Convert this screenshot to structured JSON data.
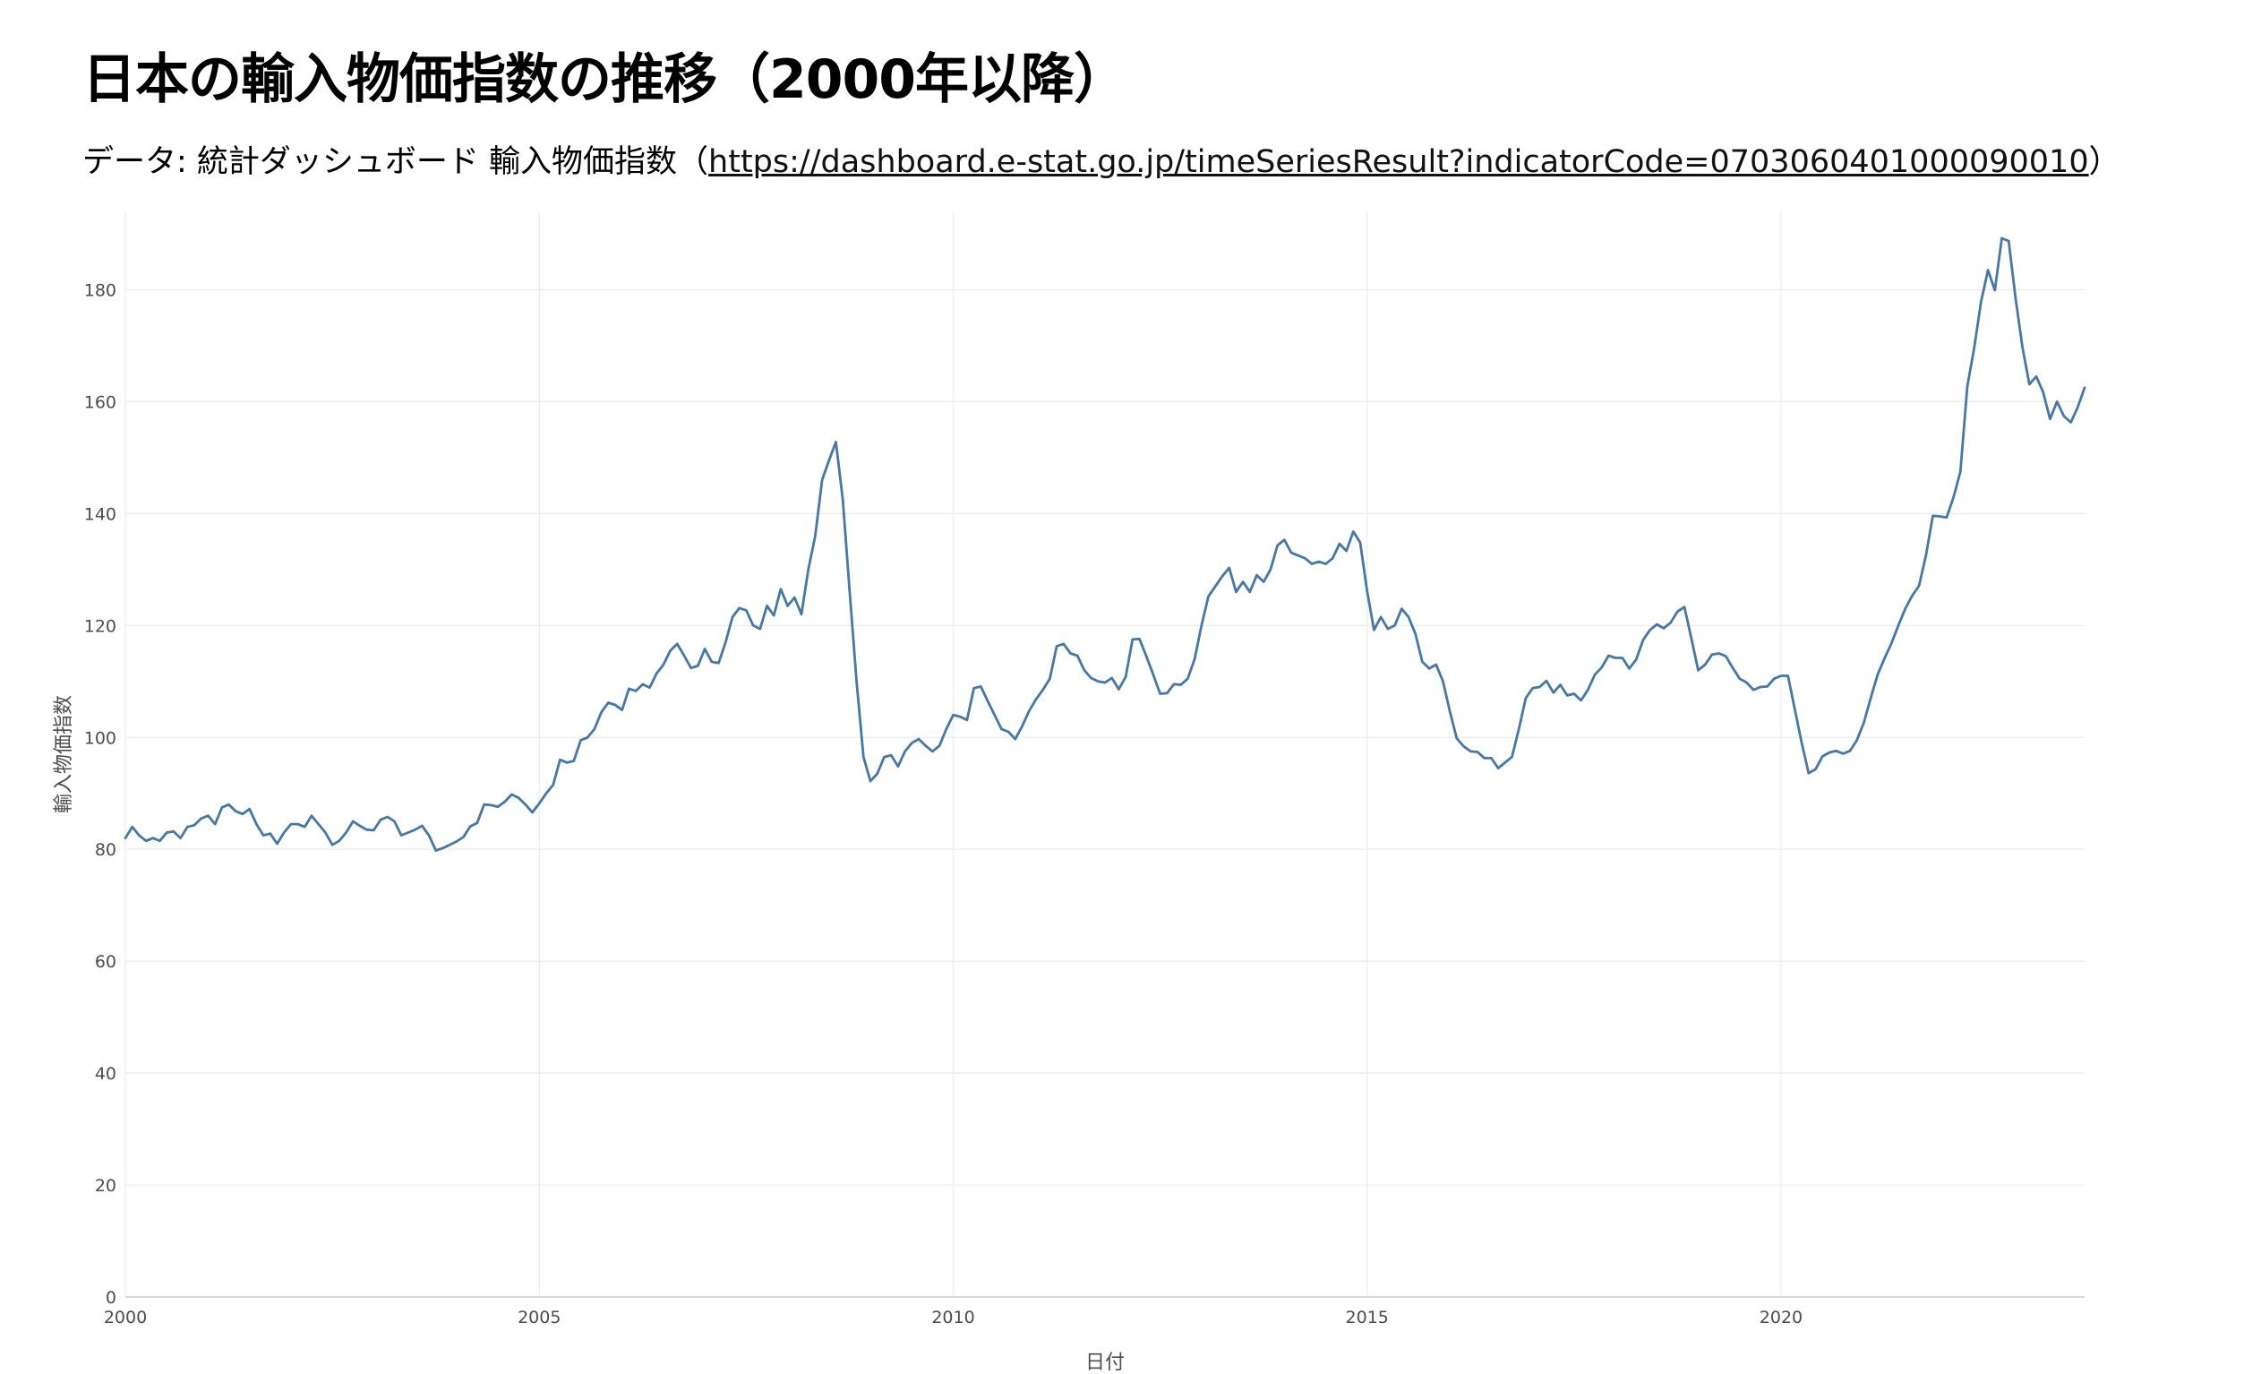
{
  "header": {
    "title": "日本の輸入物価指数の推移（2000年以降）",
    "subtitle_prefix": "データ: 統計ダッシュボード 輸入物価指数（",
    "subtitle_link": "https://dashboard.e-stat.go.jp/timeSeriesResult?indicatorCode=0703060401000090010",
    "subtitle_suffix": "）"
  },
  "colors": {
    "line": "#4477aa",
    "grid": "#ebebeb",
    "axis": "#cccccc",
    "background": "#ffffff"
  },
  "chart_data": {
    "type": "line",
    "title": "日本の輸入物価指数の推移（2000年以降）",
    "xlabel": "日付",
    "ylabel": "輸入物価指数",
    "xlim": [
      2000.0,
      2023.667
    ],
    "ylim": [
      0,
      194
    ],
    "x_ticks": [
      2000,
      2005,
      2010,
      2015,
      2020
    ],
    "x_tick_labels": [
      "2000",
      "2005",
      "2010",
      "2015",
      "2020"
    ],
    "y_ticks": [
      0,
      20,
      40,
      60,
      80,
      100,
      120,
      140,
      160,
      180
    ],
    "y_tick_labels": [
      "0",
      "20",
      "40",
      "60",
      "80",
      "100",
      "120",
      "140",
      "160",
      "180"
    ],
    "grid": true,
    "legend": "none",
    "series": [
      {
        "frequency": "monthly",
        "start": "2000-01",
        "values": [
          82.0,
          84.0,
          82.5,
          81.5,
          82.0,
          81.5,
          83.0,
          83.2,
          82.0,
          84.0,
          84.3,
          85.5,
          86.0,
          84.5,
          87.5,
          88.0,
          86.8,
          86.3,
          87.2,
          84.5,
          82.5,
          82.8,
          81.0,
          83.0,
          84.5,
          84.5,
          84.0,
          86.0,
          84.5,
          83.0,
          80.8,
          81.5,
          83.0,
          85.0,
          84.2,
          83.5,
          83.4,
          85.3,
          85.8,
          85.0,
          82.5,
          83.0,
          83.5,
          84.2,
          82.5,
          79.8,
          80.2,
          80.8,
          81.4,
          82.2,
          84.1,
          84.7,
          88.0,
          87.9,
          87.6,
          88.5,
          89.8,
          89.2,
          88.0,
          86.6,
          88.2,
          90.0,
          91.5,
          96.0,
          95.5,
          95.8,
          99.5,
          100.0,
          101.5,
          104.5,
          106.2,
          105.8,
          104.9,
          108.7,
          108.3,
          109.5,
          108.9,
          111.4,
          113.0,
          115.5,
          116.7,
          114.6,
          112.4,
          112.8,
          115.8,
          113.5,
          113.3,
          117.0,
          121.5,
          123.1,
          122.7,
          120.0,
          119.4,
          123.5,
          121.8,
          126.5,
          123.5,
          125.0,
          122.0,
          130.0,
          136.0,
          146.0,
          149.5,
          152.8,
          142.5,
          126.0,
          110.0,
          96.5,
          92.2,
          93.5,
          96.5,
          96.8,
          94.8,
          97.5,
          99.0,
          99.7,
          98.5,
          97.5,
          98.5,
          101.5,
          104.0,
          103.7,
          103.1,
          108.8,
          109.1,
          106.5,
          104.0,
          101.5,
          101.0,
          99.7,
          102.0,
          104.7,
          106.8,
          108.5,
          110.5,
          116.3,
          116.7,
          115.0,
          114.6,
          112.0,
          110.6,
          110.0,
          109.8,
          110.6,
          108.6,
          110.8,
          117.5,
          117.6,
          114.5,
          111.2,
          107.8,
          107.9,
          109.5,
          109.4,
          110.5,
          114.0,
          120.0,
          125.2,
          127.0,
          128.8,
          130.3,
          126.0,
          127.8,
          126.0,
          129.0,
          127.8,
          130.0,
          134.3,
          135.3,
          133.0,
          132.5,
          132.0,
          131.0,
          131.4,
          131.0,
          132.0,
          134.6,
          133.3,
          136.8,
          134.8,
          126.2,
          119.2,
          121.5,
          119.4,
          120.0,
          123.0,
          121.5,
          118.5,
          113.5,
          112.3,
          113.0,
          110.0,
          104.6,
          99.8,
          98.4,
          97.5,
          97.4,
          96.3,
          96.3,
          94.5,
          95.5,
          96.5,
          101.5,
          107.0,
          108.8,
          109.0,
          110.1,
          108.0,
          109.4,
          107.5,
          107.8,
          106.6,
          108.5,
          111.2,
          112.5,
          114.6,
          114.2,
          114.2,
          112.3,
          113.9,
          117.4,
          119.2,
          120.2,
          119.5,
          120.5,
          122.5,
          123.3,
          117.7,
          112.0,
          113.0,
          114.8,
          115.0,
          114.5,
          112.4,
          110.5,
          109.8,
          108.5,
          109.0,
          109.1,
          110.5,
          111.0,
          111.0,
          105.0,
          99.0,
          93.6,
          94.3,
          96.6,
          97.3,
          97.6,
          97.1,
          97.6,
          99.5,
          102.6,
          107.0,
          111.2,
          114.1,
          116.8,
          120.0,
          123.0,
          125.3,
          127.1,
          132.5,
          139.6,
          139.5,
          139.3,
          142.9,
          147.5,
          162.7,
          169.6,
          177.9,
          183.5,
          179.9,
          189.2,
          188.7,
          178.5,
          169.7,
          163.1,
          164.5,
          161.7,
          156.9,
          160.0,
          157.4,
          156.3,
          159.0,
          162.5
        ]
      }
    ]
  }
}
